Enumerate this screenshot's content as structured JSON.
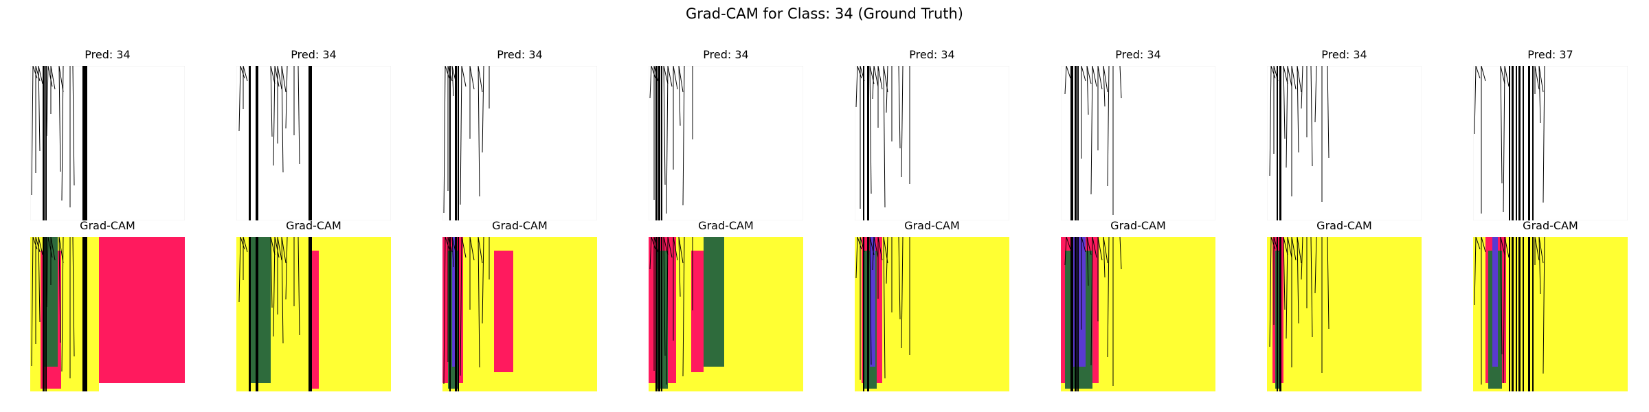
{
  "figure": {
    "title": "Grad-CAM for Class: 34 (Ground Truth)"
  },
  "panels": [
    {
      "pred_title": "Pred: 34",
      "cam_title": "Grad-CAM"
    },
    {
      "pred_title": "Pred: 34",
      "cam_title": "Grad-CAM"
    },
    {
      "pred_title": "Pred: 34",
      "cam_title": "Grad-CAM"
    },
    {
      "pred_title": "Pred: 34",
      "cam_title": "Grad-CAM"
    },
    {
      "pred_title": "Pred: 34",
      "cam_title": "Grad-CAM"
    },
    {
      "pred_title": "Pred: 34",
      "cam_title": "Grad-CAM"
    },
    {
      "pred_title": "Pred: 34",
      "cam_title": "Grad-CAM"
    },
    {
      "pred_title": "Pred: 37",
      "cam_title": "Grad-CAM"
    }
  ],
  "colors": {
    "cam_background": "#ffff33",
    "cam_hot": "#ff1a5e",
    "cam_green": "#2e6b3c",
    "cam_blue": "#5a3ad1",
    "stroke": "#000000"
  }
}
